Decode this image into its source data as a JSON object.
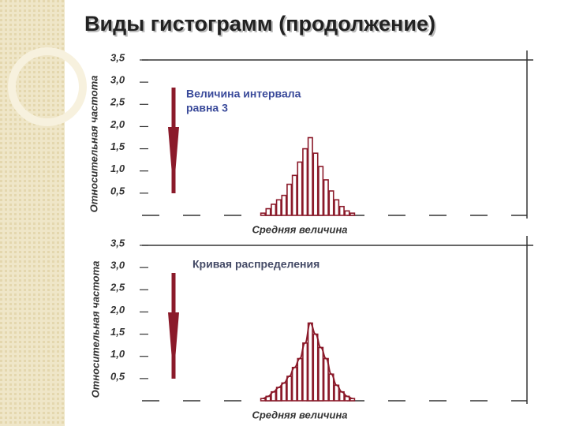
{
  "title": "Виды гистограмм (продолжение)",
  "chart_data": [
    {
      "type": "histogram",
      "categories": [
        null,
        null,
        null,
        null,
        null,
        null,
        null,
        null,
        null,
        null,
        null,
        null,
        null,
        null,
        null,
        null,
        null,
        null
      ],
      "values": [
        0.05,
        0.15,
        0.25,
        0.35,
        0.45,
        0.7,
        0.9,
        1.2,
        1.5,
        1.75,
        1.4,
        1.1,
        0.8,
        0.55,
        0.35,
        0.2,
        0.1,
        0.05
      ],
      "color": "#8b1a2a",
      "ylim": [
        0,
        3.5
      ],
      "yticks": [
        {
          "value": 0.5,
          "label": "0,5"
        },
        {
          "value": 1.0,
          "label": "1,0"
        },
        {
          "value": 1.5,
          "label": "1,5"
        },
        {
          "value": 2.0,
          "label": "2,0"
        },
        {
          "value": 2.5,
          "label": "2,5"
        },
        {
          "value": 3.0,
          "label": "3,0"
        },
        {
          "value": 3.5,
          "label": "3,5"
        }
      ],
      "ylabel": "Относительная частота",
      "xlabel": "Средняя величина",
      "annotation": [
        "Величина интервала",
        "равна 3"
      ],
      "annotation_color": "#3a4a9a",
      "curve": false
    },
    {
      "type": "histogram",
      "categories": [
        null,
        null,
        null,
        null,
        null,
        null,
        null,
        null,
        null,
        null,
        null,
        null,
        null,
        null,
        null,
        null,
        null,
        null
      ],
      "values": [
        0.05,
        0.1,
        0.2,
        0.3,
        0.4,
        0.55,
        0.75,
        0.95,
        1.3,
        1.75,
        1.5,
        1.2,
        0.95,
        0.6,
        0.35,
        0.2,
        0.1,
        0.05
      ],
      "color": "#8b1a2a",
      "ylim": [
        0,
        3.5
      ],
      "yticks": [
        {
          "value": 0.5,
          "label": "0,5"
        },
        {
          "value": 1.0,
          "label": "1,0"
        },
        {
          "value": 1.5,
          "label": "1,5"
        },
        {
          "value": 2.0,
          "label": "2,0"
        },
        {
          "value": 2.5,
          "label": "2,5"
        },
        {
          "value": 3.0,
          "label": "3,0"
        },
        {
          "value": 3.5,
          "label": "3,5"
        }
      ],
      "ylabel": "Относительная частота",
      "xlabel": "Средняя величина",
      "annotation": [
        "Кривая распределения"
      ],
      "annotation_color": "#444a66",
      "curve": true
    }
  ]
}
